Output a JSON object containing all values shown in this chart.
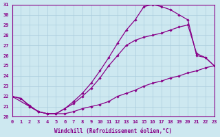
{
  "xlabel": "Windchill (Refroidissement éolien,°C)",
  "bg_color": "#cde8f0",
  "grid_color": "#aaccdd",
  "line_color": "#880088",
  "xlim": [
    0,
    23
  ],
  "ylim": [
    20,
    31
  ],
  "xticks": [
    0,
    1,
    2,
    3,
    4,
    5,
    6,
    7,
    8,
    9,
    10,
    11,
    12,
    13,
    14,
    15,
    16,
    17,
    18,
    19,
    20,
    21,
    22,
    23
  ],
  "yticks": [
    20,
    21,
    22,
    23,
    24,
    25,
    26,
    27,
    28,
    29,
    30,
    31
  ],
  "curve1_x": [
    0,
    1,
    2,
    3,
    4,
    5,
    6,
    7,
    8,
    9,
    10,
    11,
    12,
    13,
    14,
    15,
    16,
    17,
    18,
    19,
    20,
    21,
    22,
    23
  ],
  "curve1_y": [
    22.0,
    21.8,
    21.0,
    20.5,
    20.3,
    20.3,
    20.8,
    21.5,
    22.3,
    23.3,
    24.5,
    25.8,
    27.2,
    28.5,
    29.5,
    30.8,
    31.0,
    30.8,
    30.5,
    30.0,
    29.5,
    26.0,
    25.8,
    25.0
  ],
  "curve2_x": [
    0,
    1,
    2,
    3,
    4,
    5,
    6,
    7,
    8,
    9,
    10,
    11,
    12,
    13,
    14,
    15,
    16,
    17,
    18,
    19,
    20,
    21,
    22,
    23
  ],
  "curve2_y": [
    22.0,
    21.8,
    21.1,
    20.5,
    20.3,
    20.3,
    20.8,
    21.3,
    22.0,
    22.8,
    23.8,
    25.0,
    26.0,
    27.0,
    27.5,
    27.8,
    28.0,
    28.2,
    28.5,
    28.8,
    29.0,
    26.2,
    25.8,
    25.0
  ],
  "curve3_x": [
    0,
    2,
    3,
    4,
    5,
    6,
    7,
    8,
    9,
    10,
    11,
    12,
    13,
    14,
    15,
    16,
    17,
    18,
    19,
    20,
    21,
    22,
    23
  ],
  "curve3_y": [
    22.0,
    21.0,
    20.5,
    20.3,
    20.3,
    20.3,
    20.5,
    20.8,
    21.0,
    21.2,
    21.5,
    22.0,
    22.3,
    22.6,
    23.0,
    23.3,
    23.5,
    23.8,
    24.0,
    24.3,
    24.5,
    24.8,
    25.0
  ]
}
